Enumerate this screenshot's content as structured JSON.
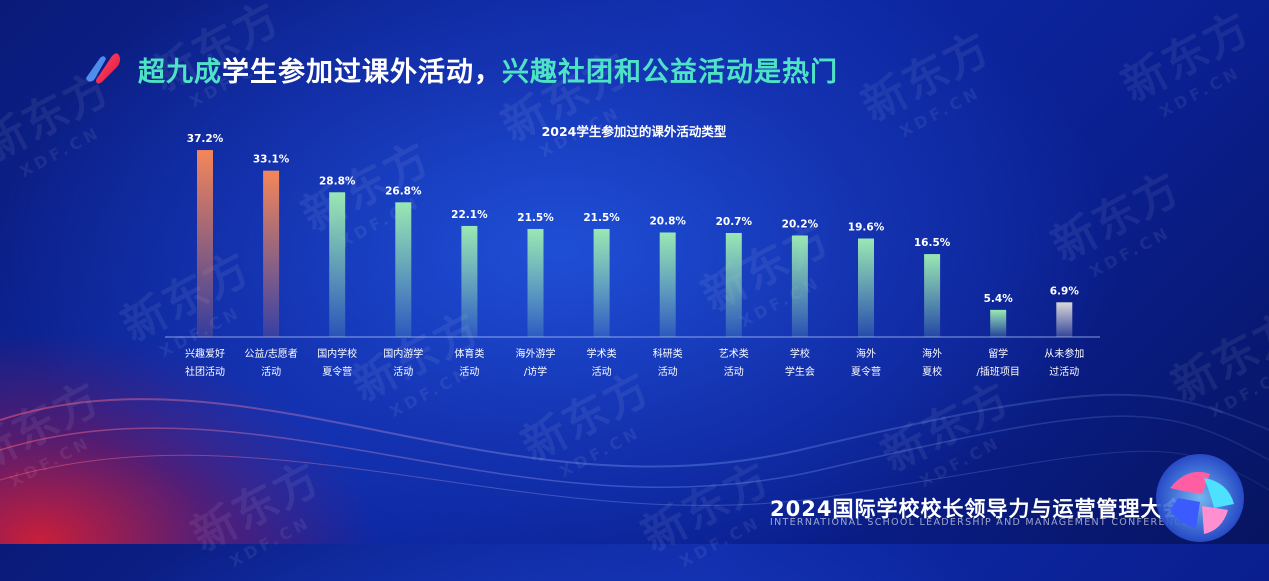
{
  "headline": {
    "highlight": "超九成",
    "rest": "学生参加过课外活动，",
    "highlight2": "兴趣社团和公益活动是热门"
  },
  "footer": {
    "title": "2024国际学校校长领导力与运营管理大会",
    "subtitle": "INTERNATIONAL SCHOOL LEADERSHIP AND MANAGEMENT CONFERENCE"
  },
  "watermark": {
    "brand": "新东方",
    "domain": "XDF.CN"
  },
  "colors": {
    "orange": "#f08a4b",
    "green": "#8de3a8",
    "gray": "#c8c8c8",
    "accent": "#4fe3c6"
  },
  "chart_data": {
    "type": "bar",
    "title": "2024学生参加过的课外活动类型",
    "unit": "%",
    "categories": [
      [
        "兴趣爱好",
        "社团活动"
      ],
      [
        "公益/志愿者",
        "活动"
      ],
      [
        "国内学校",
        "夏令营"
      ],
      [
        "国内游学",
        "活动"
      ],
      [
        "体育类",
        "活动"
      ],
      [
        "海外游学",
        "/访学"
      ],
      [
        "学术类",
        "活动"
      ],
      [
        "科研类",
        "活动"
      ],
      [
        "艺术类",
        "活动"
      ],
      [
        "学校",
        "学生会"
      ],
      [
        "海外",
        "夏令营"
      ],
      [
        "海外",
        "夏校"
      ],
      [
        "留学",
        "/插班项目"
      ],
      [
        "从未参加",
        "过活动"
      ]
    ],
    "values": [
      37.2,
      33.1,
      28.8,
      26.8,
      22.1,
      21.5,
      21.5,
      20.8,
      20.7,
      20.2,
      19.6,
      16.5,
      5.4,
      6.9
    ],
    "labels": [
      "37.2%",
      "33.1%",
      "28.8%",
      "26.8%",
      "22.1%",
      "21.5%",
      "21.5%",
      "20.8%",
      "20.7%",
      "20.2%",
      "19.6%",
      "16.5%",
      "5.4%",
      "6.9%"
    ],
    "bar_colors": [
      "orange",
      "orange",
      "green",
      "green",
      "green",
      "green",
      "green",
      "green",
      "green",
      "green",
      "green",
      "green",
      "green",
      "gray"
    ],
    "ylim": [
      0,
      40
    ],
    "grid": false,
    "legend": "none"
  }
}
